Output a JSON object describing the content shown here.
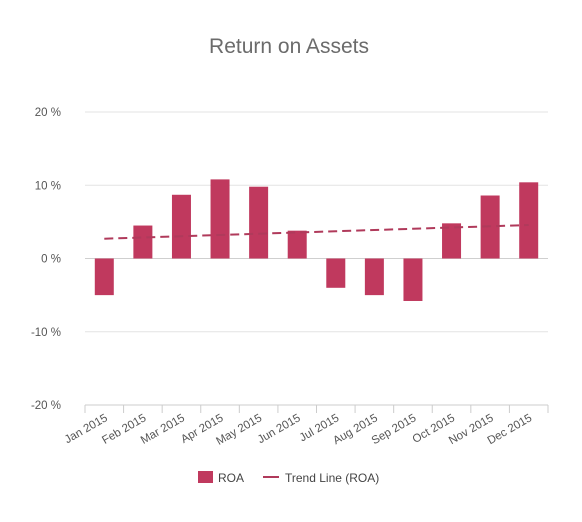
{
  "chart_data": {
    "type": "bar",
    "title": "Return on Assets",
    "categories": [
      "Jan 2015",
      "Feb 2015",
      "Mar 2015",
      "Apr 2015",
      "May 2015",
      "Jun 2015",
      "Jul 2015",
      "Aug 2015",
      "Sep 2015",
      "Oct 2015",
      "Nov 2015",
      "Dec 2015"
    ],
    "series": [
      {
        "name": "ROA",
        "type": "bar",
        "color": "#c0395e",
        "values": [
          -5,
          4.5,
          8.7,
          10.8,
          9.8,
          3.8,
          -4,
          -5,
          -5.8,
          4.8,
          8.6,
          10.4
        ]
      },
      {
        "name": "Trend Line (ROA)",
        "type": "line",
        "style": "dashed",
        "color": "#b03a5b",
        "values": [
          2.7,
          2.87,
          3.04,
          3.21,
          3.38,
          3.55,
          3.72,
          3.89,
          4.06,
          4.23,
          4.4,
          4.57
        ]
      }
    ],
    "yticks": [
      "-20 %",
      "-10 %",
      "0 %",
      "10 %",
      "20 %"
    ],
    "ylim": [
      -20,
      20
    ],
    "grid": true,
    "legend_position": "bottom"
  }
}
